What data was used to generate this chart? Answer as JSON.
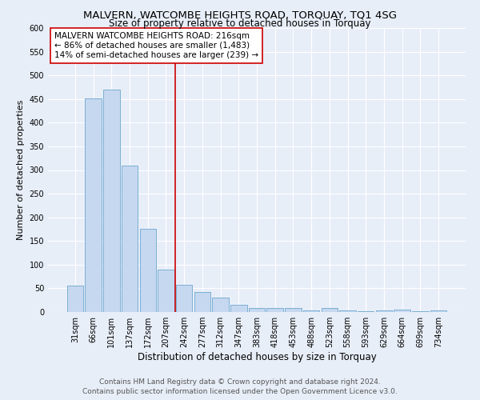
{
  "title": "MALVERN, WATCOMBE HEIGHTS ROAD, TORQUAY, TQ1 4SG",
  "subtitle": "Size of property relative to detached houses in Torquay",
  "xlabel": "Distribution of detached houses by size in Torquay",
  "ylabel": "Number of detached properties",
  "categories": [
    "31sqm",
    "66sqm",
    "101sqm",
    "137sqm",
    "172sqm",
    "207sqm",
    "242sqm",
    "277sqm",
    "312sqm",
    "347sqm",
    "383sqm",
    "418sqm",
    "453sqm",
    "488sqm",
    "523sqm",
    "558sqm",
    "593sqm",
    "629sqm",
    "664sqm",
    "699sqm",
    "734sqm"
  ],
  "values": [
    55,
    452,
    470,
    310,
    175,
    90,
    58,
    43,
    30,
    15,
    8,
    8,
    8,
    4,
    8,
    4,
    2,
    3,
    5,
    2,
    4
  ],
  "bar_color": "#c5d8f0",
  "bar_edge_color": "#7bafd4",
  "background_color": "#e8eef8",
  "grid_color": "#ffffff",
  "vline_x": 5.5,
  "vline_color": "#cc0000",
  "annotation_text": "MALVERN WATCOMBE HEIGHTS ROAD: 216sqm\n← 86% of detached houses are smaller (1,483)\n14% of semi-detached houses are larger (239) →",
  "annotation_box_color": "#ffffff",
  "annotation_box_edge": "#cc0000",
  "ylim": [
    0,
    600
  ],
  "yticks": [
    0,
    50,
    100,
    150,
    200,
    250,
    300,
    350,
    400,
    450,
    500,
    550,
    600
  ],
  "footer_line1": "Contains HM Land Registry data © Crown copyright and database right 2024.",
  "footer_line2": "Contains public sector information licensed under the Open Government Licence v3.0.",
  "title_fontsize": 9.5,
  "subtitle_fontsize": 8.5,
  "xlabel_fontsize": 8.5,
  "ylabel_fontsize": 8,
  "tick_fontsize": 7,
  "footer_fontsize": 6.5,
  "annotation_fontsize": 7.5
}
